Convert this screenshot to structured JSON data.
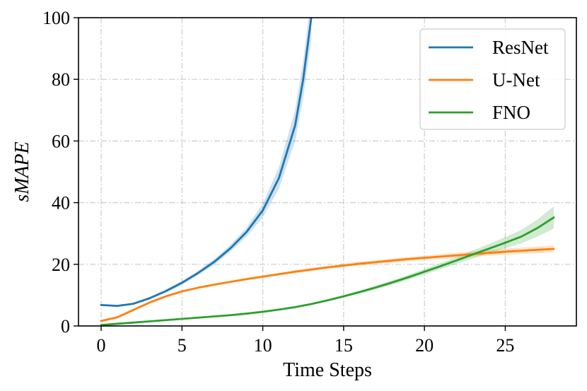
{
  "chart_data": {
    "type": "line",
    "title": "",
    "xlabel": "Time Steps",
    "ylabel": "sMAPE",
    "xlim": [
      -1.4,
      29.4
    ],
    "ylim": [
      0,
      100
    ],
    "xticks": [
      "0",
      "5",
      "10",
      "15",
      "20",
      "25"
    ],
    "yticks": [
      "0",
      "20",
      "40",
      "60",
      "80",
      "100"
    ],
    "grid": true,
    "legend_position": "top-right",
    "series": [
      {
        "name": "ResNet",
        "color": "#1f77b4",
        "x": [
          0,
          1,
          2,
          3,
          4,
          5,
          6,
          7,
          8,
          9,
          10,
          11,
          12,
          12.5,
          13
        ],
        "y": [
          6.8,
          6.5,
          7.2,
          9.0,
          11.3,
          14.0,
          17.2,
          20.8,
          25.2,
          30.5,
          37.5,
          48.0,
          65.0,
          80.0,
          100.0
        ],
        "band": [
          0.3,
          0.3,
          0.3,
          0.4,
          0.5,
          0.6,
          0.7,
          0.9,
          1.1,
          1.5,
          2.2,
          3.5,
          5.0,
          6.0,
          7.0
        ]
      },
      {
        "name": "U-Net",
        "color": "#ff7f0e",
        "x": [
          0,
          1,
          2,
          3,
          4,
          5,
          6,
          7,
          8,
          9,
          10,
          11,
          12,
          13,
          14,
          15,
          16,
          17,
          18,
          19,
          20,
          21,
          22,
          23,
          24,
          25,
          26,
          27,
          28
        ],
        "y": [
          1.6,
          2.8,
          5.2,
          7.6,
          9.6,
          11.2,
          12.4,
          13.4,
          14.3,
          15.2,
          16.0,
          16.8,
          17.6,
          18.3,
          19.0,
          19.6,
          20.2,
          20.7,
          21.2,
          21.7,
          22.1,
          22.5,
          22.9,
          23.3,
          23.7,
          24.1,
          24.4,
          24.7,
          25.0
        ],
        "band": [
          0.2,
          0.3,
          0.3,
          0.3,
          0.3,
          0.3,
          0.3,
          0.3,
          0.3,
          0.4,
          0.4,
          0.4,
          0.5,
          0.5,
          0.5,
          0.6,
          0.6,
          0.6,
          0.7,
          0.7,
          0.7,
          0.8,
          0.8,
          0.9,
          0.9,
          1.0,
          1.0,
          1.1,
          1.1
        ]
      },
      {
        "name": "FNO",
        "color": "#2ca02c",
        "x": [
          0,
          1,
          2,
          3,
          4,
          5,
          6,
          7,
          8,
          9,
          10,
          11,
          12,
          13,
          14,
          15,
          16,
          17,
          18,
          19,
          20,
          21,
          22,
          23,
          24,
          25,
          26,
          27,
          28
        ],
        "y": [
          0.3,
          0.7,
          1.1,
          1.5,
          1.9,
          2.3,
          2.7,
          3.1,
          3.5,
          4.0,
          4.6,
          5.3,
          6.1,
          7.1,
          8.3,
          9.6,
          11.0,
          12.5,
          14.1,
          15.8,
          17.6,
          19.4,
          21.3,
          23.2,
          25.1,
          27.0,
          29.0,
          31.8,
          35.2
        ],
        "band": [
          0.1,
          0.1,
          0.1,
          0.1,
          0.1,
          0.1,
          0.2,
          0.2,
          0.2,
          0.2,
          0.2,
          0.3,
          0.3,
          0.3,
          0.4,
          0.4,
          0.5,
          0.6,
          0.7,
          0.8,
          0.9,
          1.0,
          1.1,
          1.3,
          1.5,
          1.8,
          2.2,
          2.8,
          3.6
        ]
      }
    ]
  }
}
